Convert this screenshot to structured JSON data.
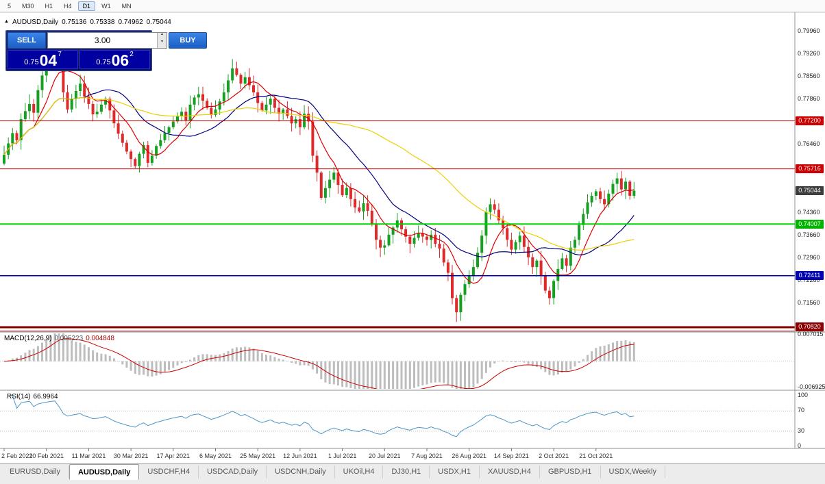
{
  "toolbar": {
    "periods": [
      "5",
      "M30",
      "H1",
      "H4",
      "D1",
      "W1",
      "MN"
    ],
    "active_period": "D1"
  },
  "header": {
    "symbol_period": "AUDUSD,Daily",
    "open": "0.75136",
    "high": "0.75338",
    "low": "0.74962",
    "close": "0.75044"
  },
  "trade_panel": {
    "sell_label": "SELL",
    "buy_label": "BUY",
    "volume": "3.00",
    "sell": {
      "prefix": "0.75",
      "big": "04",
      "sup": "7"
    },
    "buy": {
      "prefix": "0.75",
      "big": "06",
      "sup": "2"
    }
  },
  "price_axis": {
    "labels": [
      {
        "text": "0.79960",
        "price": 0.7996
      },
      {
        "text": "0.79260",
        "price": 0.7926
      },
      {
        "text": "0.78560",
        "price": 0.7856
      },
      {
        "text": "0.77860",
        "price": 0.7786
      },
      {
        "text": "0.76460",
        "price": 0.7646
      },
      {
        "text": "0.74360",
        "price": 0.7436
      },
      {
        "text": "0.73660",
        "price": 0.7366
      },
      {
        "text": "0.72960",
        "price": 0.7296
      },
      {
        "text": "0.72260",
        "price": 0.7226
      },
      {
        "text": "0.71560",
        "price": 0.7156
      }
    ],
    "badges": [
      {
        "text": "0.77200",
        "price": 0.772,
        "bg": "#cc0000"
      },
      {
        "text": "0.75716",
        "price": 0.75716,
        "bg": "#cc0000"
      },
      {
        "text": "0.75044",
        "price": 0.75044,
        "bg": "#3d3d3d"
      },
      {
        "text": "0.74007",
        "price": 0.74007,
        "bg": "#00b400"
      },
      {
        "text": "0.72411",
        "price": 0.72411,
        "bg": "#0000b4"
      },
      {
        "text": "0.70820",
        "price": 0.7082,
        "bg": "#8b0000"
      }
    ]
  },
  "macd_panel": {
    "label": "MACD(12,26,9)",
    "main_value": "0.005223",
    "signal_value": "0.004848",
    "axis": [
      {
        "text": "0.007015",
        "value": 0.007015
      },
      {
        "text": "-0.006925",
        "value": -0.006925
      }
    ]
  },
  "rsi_panel": {
    "label": "RSI(14)",
    "value": "66.9964",
    "axis": [
      {
        "text": "100",
        "value": 100
      },
      {
        "text": "70",
        "value": 70
      },
      {
        "text": "30",
        "value": 30
      },
      {
        "text": "0",
        "value": 0
      }
    ]
  },
  "date_axis": [
    "2 Feb 2021",
    "20 Feb 2021",
    "11 Mar 2021",
    "30 Mar 2021",
    "17 Apr 2021",
    "6 May 2021",
    "25 May 2021",
    "12 Jun 2021",
    "1 Jul 2021",
    "20 Jul 2021",
    "7 Aug 2021",
    "26 Aug 2021",
    "14 Sep 2021",
    "2 Oct 2021",
    "21 Oct 2021"
  ],
  "tabs": [
    {
      "label": "EURUSD,Daily",
      "active": false
    },
    {
      "label": "AUDUSD,Daily",
      "active": true
    },
    {
      "label": "USDCHF,H4",
      "active": false
    },
    {
      "label": "USDCAD,Daily",
      "active": false
    },
    {
      "label": "USDCNH,Daily",
      "active": false
    },
    {
      "label": "UKOil,H4",
      "active": false
    },
    {
      "label": "DJ30,H1",
      "active": false
    },
    {
      "label": "USDX,H1",
      "active": false
    },
    {
      "label": "XAUUSD,H4",
      "active": false
    },
    {
      "label": "GBPUSD,H1",
      "active": false
    },
    {
      "label": "USDX,Weekly",
      "active": false
    }
  ],
  "chart_data": {
    "type": "candlestick",
    "symbol": "AUDUSD",
    "timeframe": "Daily",
    "title": "AUDUSD,Daily",
    "ohlc_display": {
      "open": 0.75136,
      "high": 0.75338,
      "low": 0.74962,
      "close": 0.75044
    },
    "ylim": [
      0.70692,
      0.80553
    ],
    "x_labels": [
      "2 Feb 2021",
      "20 Feb 2021",
      "11 Mar 2021",
      "30 Mar 2021",
      "17 Apr 2021",
      "6 May 2021",
      "25 May 2021",
      "12 Jun 2021",
      "1 Jul 2021",
      "20 Jul 2021",
      "7 Aug 2021",
      "26 Aug 2021",
      "14 Sep 2021",
      "2 Oct 2021",
      "21 Oct 2021"
    ],
    "first_open": 0.7588,
    "wick_amplitude_max": 0.003,
    "candle_up_color": "#16a022",
    "candle_down_color": "#dd2a2a",
    "closes": [
      0.7615,
      0.765,
      0.7682,
      0.766,
      0.7725,
      0.775,
      0.7772,
      0.7745,
      0.7815,
      0.786,
      0.79,
      0.7948,
      0.7988,
      0.792,
      0.7808,
      0.7755,
      0.7788,
      0.7812,
      0.7835,
      0.7795,
      0.7772,
      0.774,
      0.7748,
      0.777,
      0.7788,
      0.7752,
      0.7712,
      0.768,
      0.7652,
      0.7625,
      0.7602,
      0.758,
      0.7618,
      0.7645,
      0.759,
      0.7612,
      0.7642,
      0.766,
      0.7682,
      0.77,
      0.7718,
      0.7735,
      0.7748,
      0.7722,
      0.777,
      0.7792,
      0.7802,
      0.7782,
      0.776,
      0.7738,
      0.7755,
      0.778,
      0.7808,
      0.7845,
      0.7882,
      0.7862,
      0.7835,
      0.7855,
      0.783,
      0.7808,
      0.7775,
      0.7752,
      0.777,
      0.7788,
      0.776,
      0.7742,
      0.7755,
      0.7735,
      0.7712,
      0.7725,
      0.77,
      0.7742,
      0.7718,
      0.7612,
      0.756,
      0.7482,
      0.7512,
      0.7538,
      0.756,
      0.7522,
      0.749,
      0.7512,
      0.7478,
      0.7452,
      0.744,
      0.7465,
      0.7442,
      0.7402,
      0.7352,
      0.7328,
      0.7335,
      0.7368,
      0.739,
      0.7412,
      0.7385,
      0.7362,
      0.734,
      0.7358,
      0.7372,
      0.7362,
      0.7352,
      0.7368,
      0.734,
      0.7325,
      0.7282,
      0.725,
      0.7172,
      0.7128,
      0.7182,
      0.7215,
      0.7242,
      0.7268,
      0.7312,
      0.7365,
      0.7438,
      0.7462,
      0.7445,
      0.7412,
      0.7388,
      0.7352,
      0.7322,
      0.7345,
      0.7365,
      0.733,
      0.7298,
      0.7268,
      0.7288,
      0.724,
      0.7195,
      0.7172,
      0.7225,
      0.7262,
      0.7295,
      0.7272,
      0.7328,
      0.7352,
      0.7398,
      0.7432,
      0.7468,
      0.7488,
      0.7502,
      0.7478,
      0.7462,
      0.7495,
      0.7525,
      0.7542,
      0.7508,
      0.7532,
      0.7488,
      0.7504
    ],
    "hlines": [
      {
        "price": 0.772,
        "color": "#cc0000",
        "w": 1
      },
      {
        "price": 0.75716,
        "color": "#cc0000",
        "w": 1
      },
      {
        "price": 0.74007,
        "color": "#00d000",
        "w": 2
      },
      {
        "price": 0.72411,
        "color": "#000090",
        "w": 1.5
      },
      {
        "price": 0.7082,
        "color": "#800000",
        "w": 3
      },
      {
        "price": 0.707,
        "color": "#cc0000",
        "w": 1
      }
    ],
    "indicators": {
      "moving_averages": [
        {
          "period": 8,
          "color": "#dd0000"
        },
        {
          "period": 20,
          "color": "#000080"
        },
        {
          "period": 50,
          "color": "#ecd000"
        }
      ],
      "macd": {
        "params": "12,26,9",
        "value_main": 0.005223,
        "value_signal": 0.004848,
        "ylim": [
          -0.007287,
          0.007558
        ],
        "histogram_color": "#bdbdbd",
        "signal_color": "#cc0000"
      },
      "rsi": {
        "period": 14,
        "value": 66.9964,
        "levels": [
          70,
          30
        ],
        "color": "#4a96c8",
        "ylim": [
          0,
          100
        ]
      }
    }
  }
}
